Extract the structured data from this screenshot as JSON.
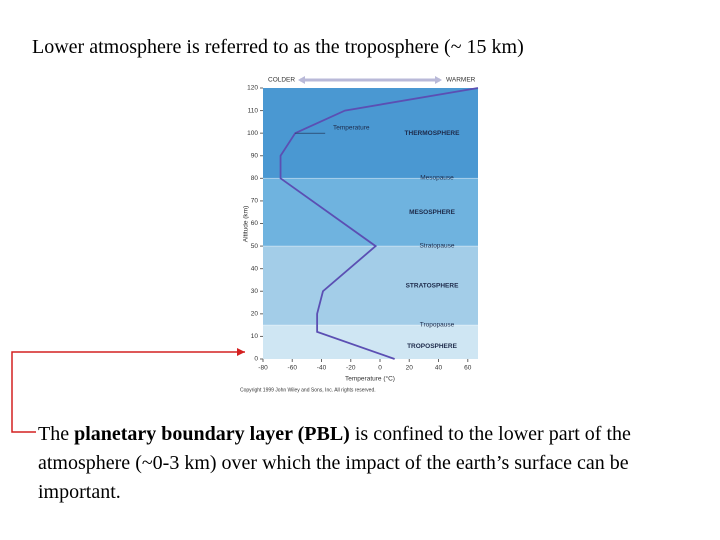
{
  "slide_title": "Lower atmosphere is referred to as the troposphere (~ 15 km)",
  "body": {
    "before": "The ",
    "bold": "planetary boundary layer (PBL)",
    "after": " is confined to the lower part of the atmosphere (~0-3 km) over which the impact of the earth’s surface can be important."
  },
  "chart_data": {
    "type": "line",
    "x_label": "Temperature (°C)",
    "y_label": "Altitude (km)",
    "colder_label": "COLDER",
    "warmer_label": "WARMER",
    "annotation": "Temperature",
    "credit": "Copyright 1999 John Wiley and Sons, Inc. All rights reserved.",
    "series": [
      {
        "name": "Temperature",
        "color": "#5b4fb3",
        "x": [
          10,
          -43,
          -43,
          -39,
          -3,
          -68,
          -68,
          -58,
          -24,
          67
        ],
        "values": [
          0,
          12,
          20,
          30,
          50,
          80,
          90,
          100,
          110,
          120
        ]
      }
    ],
    "layers": [
      {
        "name": "TROPOSPHERE",
        "bottom": 0,
        "top": 15,
        "color": "#cfe6f3"
      },
      {
        "name": "STRATOSPHERE",
        "bottom": 15,
        "top": 50,
        "color": "#a3cde8"
      },
      {
        "name": "MESOSPHERE",
        "bottom": 50,
        "top": 80,
        "color": "#6fb3df"
      },
      {
        "name": "THERMOSPHERE",
        "bottom": 80,
        "top": 120,
        "color": "#4a98d2"
      }
    ],
    "boundaries": [
      {
        "label": "Tropopause",
        "value": 15
      },
      {
        "label": "Stratopause",
        "value": 50
      },
      {
        "label": "Mesopause",
        "value": 80
      }
    ],
    "xlim": [
      -80,
      67
    ],
    "ylim": [
      0,
      120
    ],
    "xticks": [
      -80,
      -60,
      -40,
      -20,
      0,
      20,
      40,
      60
    ],
    "yticks": [
      0,
      10,
      20,
      30,
      40,
      50,
      60,
      70,
      80,
      90,
      100,
      110,
      120
    ]
  }
}
